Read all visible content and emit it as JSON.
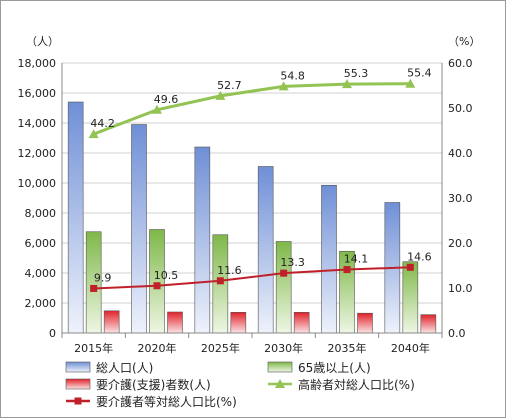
{
  "chart_data": {
    "type": "bar",
    "categories": [
      "2015年",
      "2020年",
      "2025年",
      "2030年",
      "2035年",
      "2040年"
    ],
    "y_left_unit": "（人）",
    "y_right_unit": "（%）",
    "ylim_left": [
      0,
      18000
    ],
    "ylim_right": [
      0,
      60
    ],
    "yticks_left": [
      "0",
      "2,000",
      "4,000",
      "6,000",
      "8,000",
      "10,000",
      "12,000",
      "14,000",
      "16,000",
      "18,000"
    ],
    "yticks_right": [
      "0.0",
      "10.0",
      "20.0",
      "30.0",
      "40.0",
      "50.0",
      "60.0"
    ],
    "grid": true,
    "bar_series": [
      {
        "name": "総人口(人)",
        "axis": "left",
        "color": "#6f8fd6",
        "values": [
          15400,
          13900,
          12400,
          11100,
          9850,
          8700
        ]
      },
      {
        "name": "65歳以上(人)",
        "axis": "left",
        "color": "#7fb849",
        "values": [
          6750,
          6900,
          6550,
          6100,
          5450,
          4750
        ]
      },
      {
        "name": "要介護(支援)者数(人)",
        "axis": "left",
        "color": "#e0222a",
        "values": [
          1480,
          1400,
          1380,
          1380,
          1320,
          1220
        ]
      }
    ],
    "line_series": [
      {
        "name": "高齢者対総人口比(%)",
        "axis": "right",
        "color": "#92c353",
        "marker": "triangle",
        "values": [
          44.2,
          49.6,
          52.7,
          54.8,
          55.3,
          55.4
        ],
        "labels": [
          "44.2",
          "49.6",
          "52.7",
          "54.8",
          "55.3",
          "55.4"
        ]
      },
      {
        "name": "要介護者等対総人口比(%)",
        "axis": "right",
        "color": "#c0202a",
        "marker": "square",
        "values": [
          9.9,
          10.5,
          11.6,
          13.3,
          14.1,
          14.6
        ],
        "labels": [
          "9.9",
          "10.5",
          "11.6",
          "13.3",
          "14.1",
          "14.6"
        ]
      }
    ],
    "legend_position": "bottom"
  }
}
